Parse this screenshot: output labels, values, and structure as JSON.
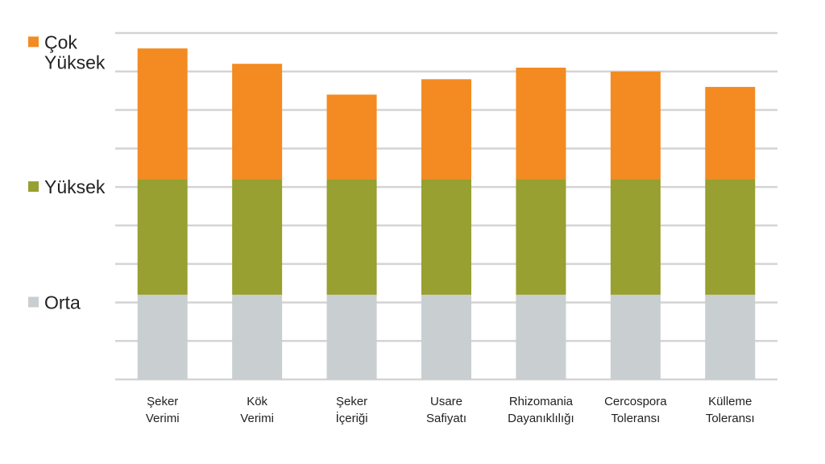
{
  "chart_data": {
    "type": "bar",
    "stacked": true,
    "categories": [
      [
        "Şeker",
        "Verimi"
      ],
      [
        "Kök",
        "Verimi"
      ],
      [
        "Şeker",
        "İçeriği"
      ],
      [
        "Usare",
        "Safiyatı"
      ],
      [
        "Rhizomania",
        "Dayanıklılığı"
      ],
      [
        "Cercospora",
        "Toleransı"
      ],
      [
        "Külleme",
        "Toleransı"
      ]
    ],
    "series": [
      {
        "name": "Orta",
        "color": "#c9ced1",
        "values": [
          2.2,
          2.2,
          2.2,
          2.2,
          2.2,
          2.2,
          2.2
        ]
      },
      {
        "name": "Yüksek",
        "color": "#97a030",
        "values": [
          3.0,
          3.0,
          3.0,
          3.0,
          3.0,
          3.0,
          3.0
        ]
      },
      {
        "name": "Çok Yüksek",
        "color": "#f38b22",
        "values": [
          3.4,
          3.0,
          2.2,
          2.6,
          2.9,
          2.8,
          2.4
        ]
      }
    ],
    "legend": [
      {
        "lines": [
          "Çok",
          "Yüksek"
        ],
        "color": "#f38b22",
        "level": 8.5
      },
      {
        "lines": [
          "Yüksek"
        ],
        "color": "#97a030",
        "level": 5.0
      },
      {
        "lines": [
          "Orta"
        ],
        "color": "#c9ced1",
        "level": 2.0
      }
    ],
    "ylim": [
      0,
      9
    ],
    "grid": true,
    "legend_position": "left",
    "title": "",
    "xlabel": "",
    "ylabel": ""
  }
}
